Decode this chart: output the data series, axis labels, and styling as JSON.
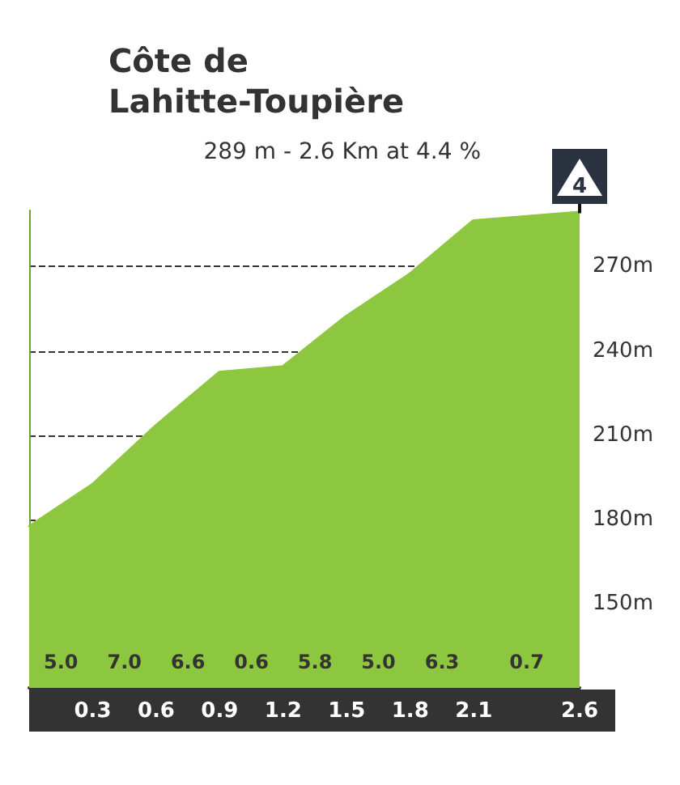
{
  "chart_data": {
    "type": "area",
    "title": "Côte de Lahitte-Toupière",
    "subtitle": "289 m - 2.6 Km at 4.4 %",
    "x": [
      0,
      0.3,
      0.6,
      0.9,
      1.2,
      1.5,
      1.8,
      2.1,
      2.6
    ],
    "series": [
      {
        "color": "#8dc63f",
        "values": [
          177,
          192,
          213,
          232,
          234,
          252,
          267,
          286,
          289
        ]
      }
    ],
    "xlim": [
      0,
      2.6
    ],
    "xticks": [
      0.3,
      0.6,
      0.9,
      1.2,
      1.5,
      1.8,
      2.1,
      2.6
    ],
    "ylim": [
      120,
      290
    ],
    "yticks": [
      {
        "value": 150,
        "label": "150m"
      },
      {
        "value": 180,
        "label": "180m"
      },
      {
        "value": 210,
        "label": "210m"
      },
      {
        "value": 240,
        "label": "240m"
      },
      {
        "value": 270,
        "label": "270m"
      }
    ],
    "grid": "y",
    "line_style": "solid",
    "marker": "none",
    "annotations": [
      {
        "text": "4",
        "x": 2.6,
        "y": 289
      },
      "5.0",
      "7.0",
      "6.6",
      "0.6",
      "5.8",
      "5.0",
      "6.3",
      "0.7"
    ]
  }
}
